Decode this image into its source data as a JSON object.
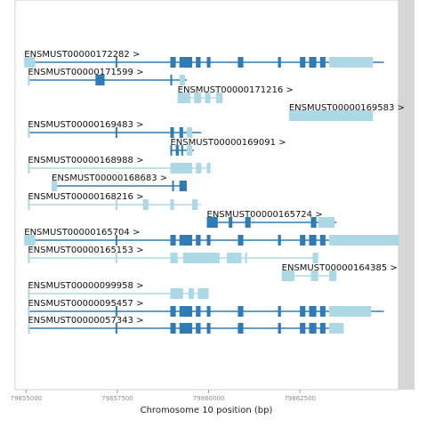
{
  "colors": {
    "exon": "#2f7bb6",
    "utr": "#add8e6",
    "intron": "#2f7bb6",
    "intron_light": "#add8e6",
    "frame": "#cfcfcf",
    "scrollbar": "#d6d6d6"
  },
  "xaxis": {
    "label": "Chromosome 10 position (bp)",
    "range": [
      79854700,
      79865200
    ],
    "ticks": [
      79855000,
      79857500,
      79860000,
      79862500
    ],
    "tick_labels": [
      "79855000",
      "79857500",
      "79860000",
      "79862500"
    ]
  },
  "transcripts": [
    {
      "name": "ENSMUST00000172282 >",
      "start": 79854950,
      "end": 79864800,
      "coding": true,
      "utr": [
        [
          79854950,
          79855250
        ],
        [
          79863300,
          79864500
        ]
      ],
      "exons": [
        [
          79857450,
          79857470
        ],
        [
          79858950,
          79859100
        ],
        [
          79859200,
          79859550
        ],
        [
          79859650,
          79859780
        ],
        [
          79859950,
          79860050
        ],
        [
          79860800,
          79860950
        ],
        [
          79861900,
          79861980
        ],
        [
          79862500,
          79862650
        ],
        [
          79862750,
          79862950
        ],
        [
          79863050,
          79863200
        ]
      ]
    },
    {
      "name": "ENSMUST00000171599 >",
      "start": 79855050,
      "end": 79859400,
      "coding": true,
      "utr": [
        [
          79855050,
          79855100
        ],
        [
          79859200,
          79859350
        ]
      ],
      "exons": [
        [
          79856900,
          79857150
        ],
        [
          79858950,
          79859000
        ]
      ]
    },
    {
      "name": "ENSMUST00000171216 >",
      "start": 79859150,
      "end": 79860400,
      "coding": false,
      "utr": [
        [
          79859150,
          79859500
        ],
        [
          79859600,
          79859800
        ],
        [
          79859900,
          79860050
        ],
        [
          79860200,
          79860380
        ]
      ],
      "exons": []
    },
    {
      "name": "ENSMUST00000169583 >",
      "start": 79862200,
      "end": 79864500,
      "coding": false,
      "utr": [
        [
          79862200,
          79864500
        ]
      ],
      "exons": []
    },
    {
      "name": "ENSMUST00000169483 >",
      "start": 79855050,
      "end": 79859800,
      "coding": true,
      "utr": [
        [
          79855050,
          79855100
        ],
        [
          79859400,
          79859550
        ]
      ],
      "exons": [
        [
          79857450,
          79857480
        ],
        [
          79858950,
          79859050
        ],
        [
          79859200,
          79859300
        ]
      ]
    },
    {
      "name": "ENSMUST00000169091 >",
      "start": 79858950,
      "end": 79859600,
      "coding": true,
      "utr": [
        [
          79859400,
          79859550
        ]
      ],
      "exons": [
        [
          79858950,
          79859000
        ],
        [
          79859100,
          79859180
        ],
        [
          79859250,
          79859300
        ]
      ]
    },
    {
      "name": "ENSMUST00000168988 >",
      "start": 79855050,
      "end": 79860050,
      "coding": false,
      "utr": [
        [
          79855050,
          79855100
        ],
        [
          79858950,
          79859550
        ],
        [
          79859650,
          79859800
        ],
        [
          79859950,
          79860050
        ]
      ],
      "exons": []
    },
    {
      "name": "ENSMUST00000168683 >",
      "start": 79855700,
      "end": 79859400,
      "coding": true,
      "utr": [
        [
          79855700,
          79855850
        ]
      ],
      "exons": [
        [
          79859000,
          79859050
        ],
        [
          79859200,
          79859400
        ]
      ]
    },
    {
      "name": "ENSMUST00000168216 >",
      "start": 79855050,
      "end": 79859800,
      "coding": false,
      "utr": [
        [
          79855050,
          79855100
        ],
        [
          79857450,
          79857500
        ],
        [
          79858200,
          79858350
        ],
        [
          79858950,
          79859050
        ],
        [
          79859550,
          79859700
        ]
      ],
      "exons": []
    },
    {
      "name": "ENSMUST00000165724 >",
      "start": 79859950,
      "end": 79863500,
      "coding": true,
      "utr": [
        [
          79863000,
          79863450
        ]
      ],
      "exons": [
        [
          79859950,
          79860250
        ],
        [
          79860550,
          79860650
        ],
        [
          79861000,
          79861150
        ],
        [
          79862800,
          79862950
        ]
      ]
    },
    {
      "name": "ENSMUST00000165704 >",
      "start": 79854950,
      "end": 79865200,
      "coding": true,
      "utr": [
        [
          79854950,
          79855250
        ],
        [
          79863300,
          79865200
        ]
      ],
      "exons": [
        [
          79857450,
          79857480
        ],
        [
          79858950,
          79859100
        ],
        [
          79859200,
          79859550
        ],
        [
          79859650,
          79859780
        ],
        [
          79859950,
          79860050
        ],
        [
          79860800,
          79860950
        ],
        [
          79861900,
          79861980
        ],
        [
          79862500,
          79862650
        ],
        [
          79862750,
          79862950
        ],
        [
          79863050,
          79863200
        ]
      ]
    },
    {
      "name": "ENSMUST00000165153 >",
      "start": 79855050,
      "end": 79863000,
      "coding": false,
      "utr": [
        [
          79855050,
          79855100
        ],
        [
          79857450,
          79857500
        ],
        [
          79858950,
          79859150
        ],
        [
          79859300,
          79860300
        ],
        [
          79860500,
          79860900
        ],
        [
          79861000,
          79861050
        ],
        [
          79862850,
          79863000
        ]
      ],
      "exons": []
    },
    {
      "name": "ENSMUST00000164385 >",
      "start": 79862000,
      "end": 79863500,
      "coding": false,
      "utr": [
        [
          79862000,
          79862350
        ],
        [
          79862800,
          79863000
        ],
        [
          79863300,
          79863500
        ]
      ],
      "exons": []
    },
    {
      "name": "ENSMUST00000099958 >",
      "start": 79855050,
      "end": 79860000,
      "coding": false,
      "utr": [
        [
          79855050,
          79855100
        ],
        [
          79858950,
          79859300
        ],
        [
          79859450,
          79859600
        ],
        [
          79859700,
          79860000
        ]
      ],
      "exons": []
    },
    {
      "name": "ENSMUST00000095457 >",
      "start": 79855050,
      "end": 79864800,
      "coding": true,
      "utr": [
        [
          79855050,
          79855100
        ],
        [
          79863300,
          79864450
        ]
      ],
      "exons": [
        [
          79857450,
          79857480
        ],
        [
          79858950,
          79859100
        ],
        [
          79859200,
          79859550
        ],
        [
          79859650,
          79859780
        ],
        [
          79859950,
          79860050
        ],
        [
          79860800,
          79860950
        ],
        [
          79861900,
          79861980
        ],
        [
          79862500,
          79862650
        ],
        [
          79862750,
          79862950
        ],
        [
          79863050,
          79863200
        ]
      ]
    },
    {
      "name": "ENSMUST00000057343 >",
      "start": 79855050,
      "end": 79863700,
      "coding": true,
      "utr": [
        [
          79855050,
          79855100
        ],
        [
          79863300,
          79863700
        ]
      ],
      "exons": [
        [
          79857450,
          79857480
        ],
        [
          79858950,
          79859100
        ],
        [
          79859200,
          79859550
        ],
        [
          79859650,
          79859780
        ],
        [
          79859950,
          79860050
        ],
        [
          79860800,
          79860950
        ],
        [
          79861900,
          79861980
        ],
        [
          79862500,
          79862650
        ],
        [
          79862750,
          79862950
        ],
        [
          79863050,
          79863200
        ]
      ]
    }
  ]
}
